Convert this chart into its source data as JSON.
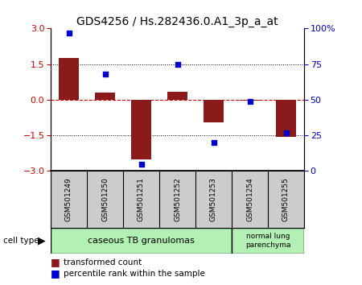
{
  "title": "GDS4256 / Hs.282436.0.A1_3p_a_at",
  "samples": [
    "GSM501249",
    "GSM501250",
    "GSM501251",
    "GSM501252",
    "GSM501253",
    "GSM501254",
    "GSM501255"
  ],
  "transformed_count": [
    1.75,
    0.3,
    -2.5,
    0.35,
    -0.95,
    -0.05,
    -1.55
  ],
  "percentile_rank": [
    97,
    68,
    5,
    75,
    20,
    49,
    27
  ],
  "ylim_left": [
    -3,
    3
  ],
  "ylim_right": [
    0,
    100
  ],
  "yticks_left": [
    -3,
    -1.5,
    0,
    1.5,
    3
  ],
  "yticks_right": [
    0,
    25,
    50,
    75,
    100
  ],
  "bar_color": "#8B1A1A",
  "dot_color": "#0000CC",
  "zero_line_color": "#CC0000",
  "group1_label": "caseous TB granulomas",
  "group2_label": "normal lung\nparenchyma",
  "group1_count": 5,
  "group2_count": 2,
  "group1_color": "#b3f0b3",
  "group2_color": "#b3f0b3",
  "cell_type_label": "cell type",
  "legend_bar_label": "transformed count",
  "legend_dot_label": "percentile rank within the sample",
  "tick_label_color_left": "#CC0000",
  "tick_label_color_right": "#0000CC",
  "axis_label_row_bg": "#cccccc"
}
